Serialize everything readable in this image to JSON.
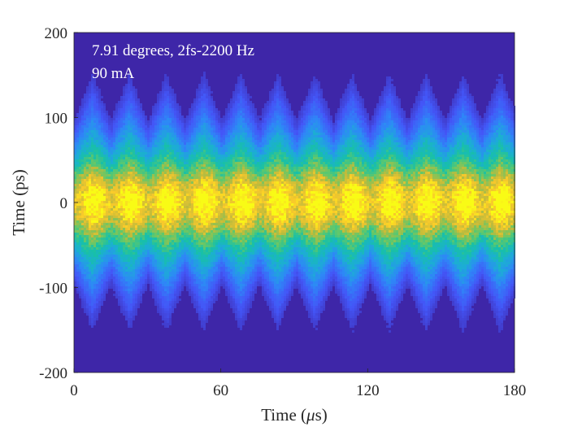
{
  "chart_data": {
    "type": "heatmap",
    "title": "",
    "xlabel": "Time (μs)",
    "xlabel_main": "Time (",
    "xlabel_unit": "μ",
    "xlabel_unit_rest": "s)",
    "ylabel": "Time (ps)",
    "xlim": [
      0,
      180
    ],
    "ylim": [
      -200,
      200
    ],
    "xticks": [
      0,
      60,
      120,
      180
    ],
    "yticks": [
      200,
      100,
      0,
      -100,
      -200
    ],
    "xtick_labels": [
      "0",
      "60",
      "120",
      "180"
    ],
    "ytick_labels": [
      "200",
      "100",
      "0",
      "-100",
      "-200"
    ],
    "annotation_line1": "7.91 degrees, 2fs-2200 Hz",
    "annotation_line2": "90 mA",
    "modulation_period_us": 15.15,
    "modulation_amplitude_ps": 15,
    "distribution_sigma_ps": 55,
    "colormap": [
      "#3e26a8",
      "#4356f7",
      "#2e87f7",
      "#1cadd5",
      "#18c0a8",
      "#60c86b",
      "#c0bb3b",
      "#f9c92b",
      "#f9fb15"
    ],
    "background_color": "#3e26a8"
  }
}
